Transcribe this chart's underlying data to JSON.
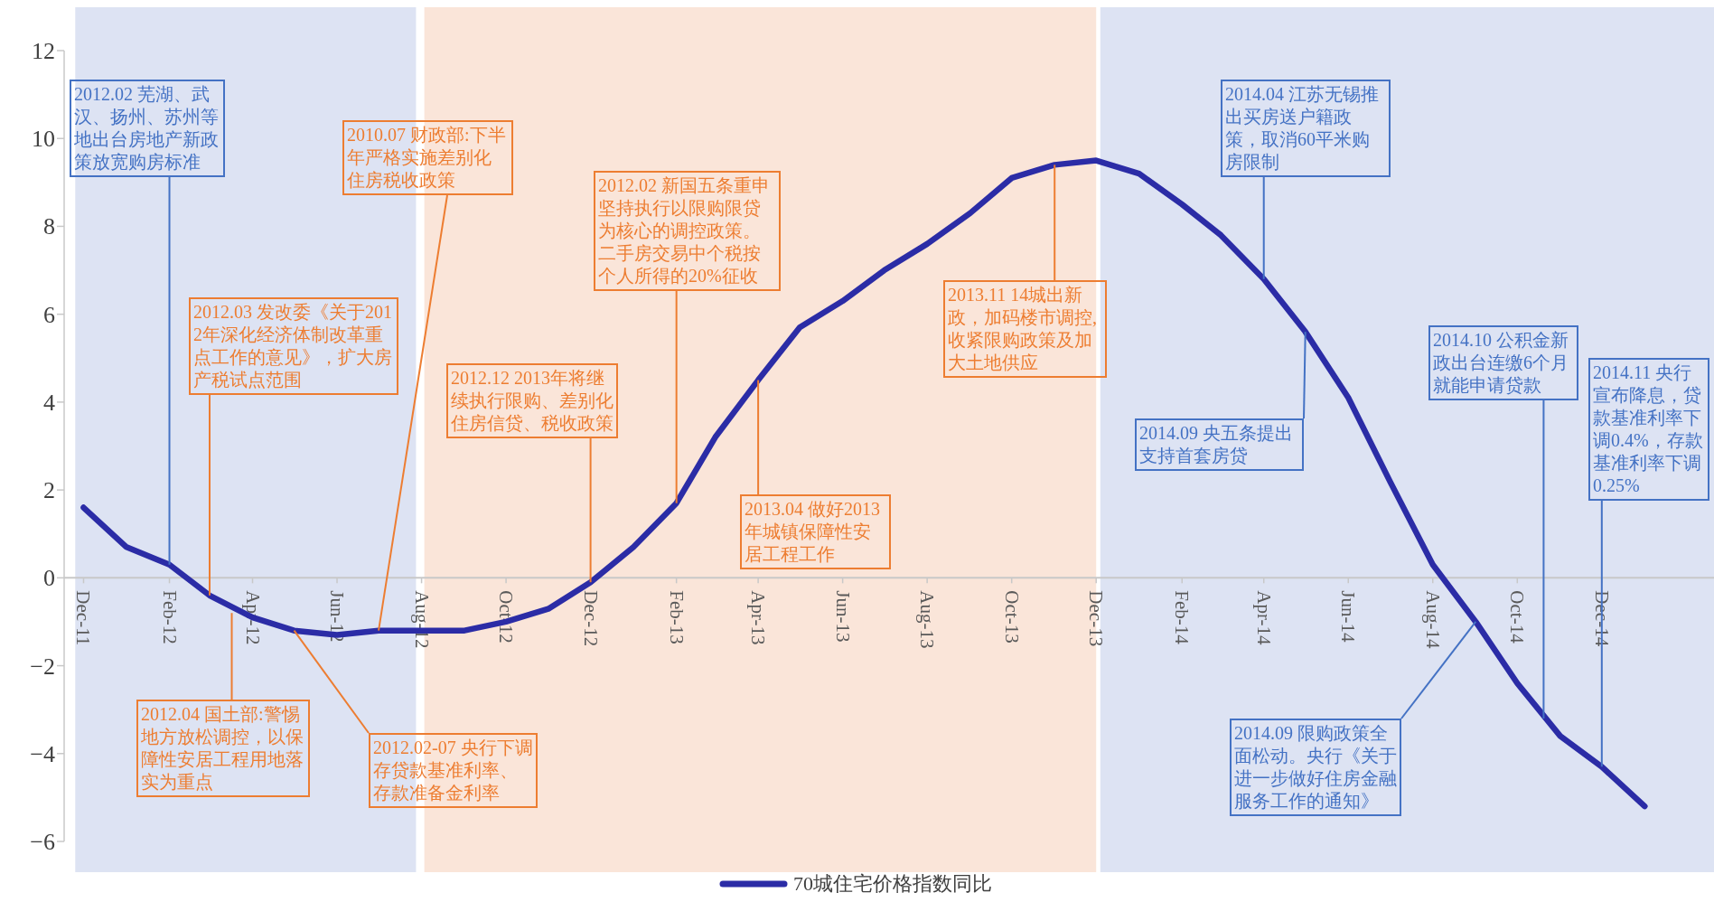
{
  "chart_data": {
    "type": "line",
    "legend": "bottom",
    "grid": false,
    "marker": "none",
    "line_style": "solid",
    "x": [
      "2011-12",
      "2012-01",
      "2012-02",
      "2012-03",
      "2012-04",
      "2012-05",
      "2012-06",
      "2012-07",
      "2012-08",
      "2012-09",
      "2012-10",
      "2012-11",
      "2012-12",
      "2013-01",
      "2013-02",
      "2013-03",
      "2013-04",
      "2013-05",
      "2013-06",
      "2013-07",
      "2013-08",
      "2013-09",
      "2013-10",
      "2013-11",
      "2013-12",
      "2014-01",
      "2014-02",
      "2014-03",
      "2014-04",
      "2014-05",
      "2014-06",
      "2014-07",
      "2014-08",
      "2014-09",
      "2014-10",
      "2014-11",
      "2014-12",
      "2015-01"
    ],
    "series": [
      {
        "name": "70城住宅价格指数同比",
        "color": "#2b2ca6",
        "values": [
          1.6,
          0.7,
          0.3,
          -0.4,
          -0.9,
          -1.2,
          -1.3,
          -1.2,
          -1.2,
          -1.2,
          -1.0,
          -0.7,
          -0.1,
          0.7,
          1.7,
          3.2,
          4.5,
          5.7,
          6.3,
          7.0,
          7.6,
          8.3,
          9.1,
          9.4,
          9.5,
          9.2,
          8.5,
          7.8,
          6.8,
          5.6,
          4.1,
          2.2,
          0.3,
          -1.0,
          -2.4,
          -3.6,
          -4.3,
          -5.2
        ]
      }
    ],
    "xlim": [
      "2011-11-17",
      "2015-02-20"
    ],
    "xticks": [
      {
        "value": "2011-12",
        "label": "Dec-11"
      },
      {
        "value": "2012-02",
        "label": "Feb-12"
      },
      {
        "value": "2012-04",
        "label": "Apr-12"
      },
      {
        "value": "2012-06",
        "label": "Jun-12"
      },
      {
        "value": "2012-08",
        "label": "Aug-12"
      },
      {
        "value": "2012-10",
        "label": "Oct-12"
      },
      {
        "value": "2012-12",
        "label": "Dec-12"
      },
      {
        "value": "2013-02",
        "label": "Feb-13"
      },
      {
        "value": "2013-04",
        "label": "Apr-13"
      },
      {
        "value": "2013-06",
        "label": "Jun-13"
      },
      {
        "value": "2013-08",
        "label": "Aug-13"
      },
      {
        "value": "2013-10",
        "label": "Oct-13"
      },
      {
        "value": "2013-12",
        "label": "Dec-13"
      },
      {
        "value": "2014-02",
        "label": "Feb-14"
      },
      {
        "value": "2014-04",
        "label": "Apr-14"
      },
      {
        "value": "2014-06",
        "label": "Jun-14"
      },
      {
        "value": "2014-08",
        "label": "Aug-14"
      },
      {
        "value": "2014-10",
        "label": "Oct-14"
      },
      {
        "value": "2014-12",
        "label": "Dec-14"
      }
    ],
    "ylim": [
      -6,
      12
    ],
    "yticks": [
      -6,
      -4,
      -2,
      0,
      2,
      4,
      6,
      8,
      10,
      12
    ],
    "bands": [
      {
        "axis": "x",
        "from": "2011-11-25",
        "to": "2012-07-28",
        "color": "#dde3f3"
      },
      {
        "axis": "x",
        "from": "2012-08-03",
        "to": "2013-12-01",
        "color": "#fae5d9"
      },
      {
        "axis": "x",
        "from": "2013-12-04",
        "to": "2015-02-20",
        "color": "#dde3f3"
      }
    ],
    "annotations": [
      {
        "text": "2012.02 芜湖、武汉、扬州、苏州等地出台房地产新政策放宽购房标准",
        "x": "2012-02",
        "y": 0.3
      },
      {
        "text": "2010.07 财政部:下半年严格实施差别化住房税收政策",
        "x": "2012-07",
        "y": -1.2
      },
      {
        "text": "2012.03 发改委《关于2012年深化经济体制改革重点工作的意见》，扩大房产税试点范围",
        "x": "2012-03",
        "y": -0.4
      },
      {
        "text": "2012.04 国土部:警惕地方放松调控，以保障性安居工程用地落实为重点",
        "x": "2012-03-17",
        "y": -0.8
      },
      {
        "text": "2012.02-07 央行下调存贷款基准利率、存款准备金利率",
        "x": "2012-05",
        "y": -1.2
      },
      {
        "text": "2012.12 2013年将继续执行限购、差别化住房信贷、税收政策",
        "x": "2012-12",
        "y": -0.1
      },
      {
        "text": "2012.02 新国五条重申坚持执行以限购限贷为核心的调控政策。二手房交易中个税按个人所得的20%征收",
        "x": "2013-02",
        "y": 1.7
      },
      {
        "text": "2013.04 做好2013年城镇保障性安居工程工作",
        "x": "2013-04",
        "y": 4.5
      },
      {
        "text": "2013.11 14城出新政，加码楼市调控,收紧限购政策及加大土地供应",
        "x": "2013-11",
        "y": 9.4
      },
      {
        "text": "2014.04 江苏无锡推出买房送户籍政策，取消60平米购房限制",
        "x": "2014-04",
        "y": 6.8
      },
      {
        "text": "2014.09 央五条提出支持首套房贷",
        "x": "2014-05",
        "y": 5.6
      },
      {
        "text": "2014.10 公积金新政出台连缴6个月就能申请贷款",
        "x": "2014-10-20",
        "y": -3.2
      },
      {
        "text": "2014.09 限购政策全面松动。央行《关于进一步做好住房金融服务工作的通知》",
        "x": "2014-09",
        "y": -1.0
      },
      {
        "text": "2014.11 央行宣布降息，贷款基准利率下调0.4%，存款基准利率下调0.25%",
        "x": "2014-12",
        "y": -4.3
      }
    ]
  }
}
